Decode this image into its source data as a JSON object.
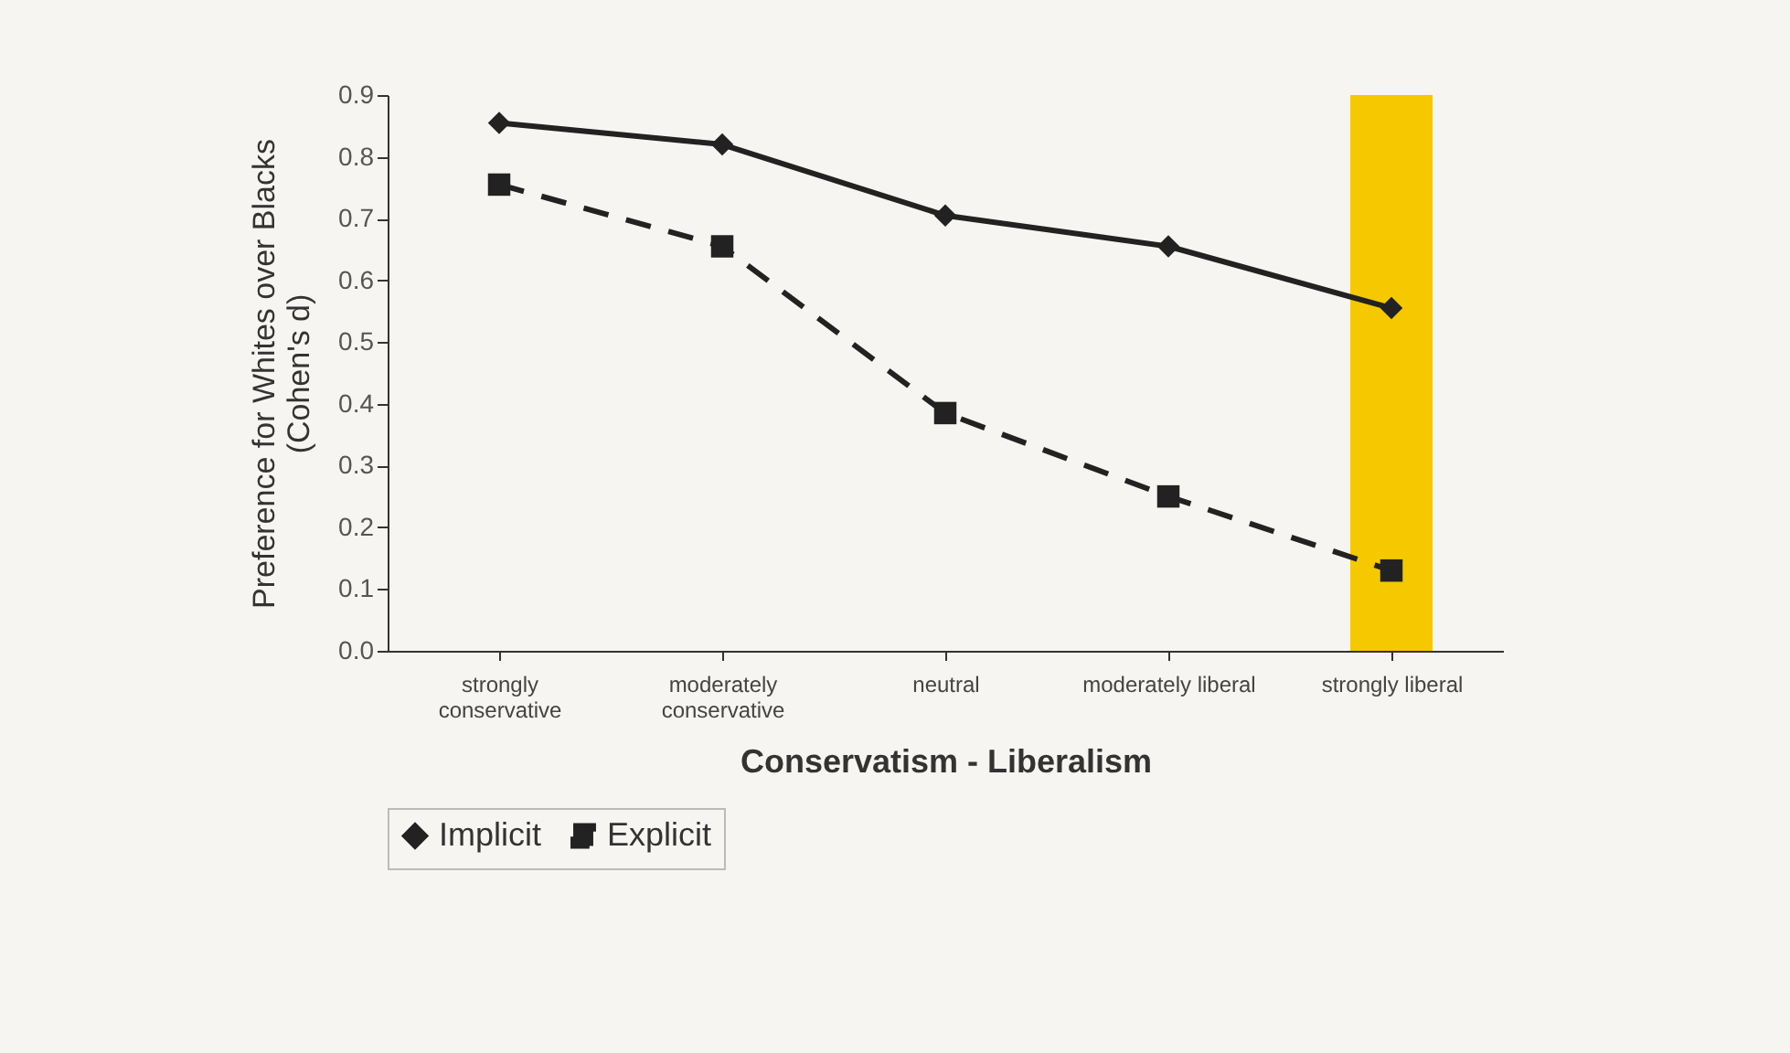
{
  "chart_data": {
    "type": "line",
    "xlabel": "Conservatism - Liberalism",
    "ylabel": "Preference for Whites over Blacks (Cohen's d)",
    "categories": [
      "strongly conservative",
      "moderately conservative",
      "neutral",
      "moderately liberal",
      "strongly liberal"
    ],
    "series": [
      {
        "name": "Implicit",
        "color": "#222222",
        "marker": "diamond",
        "line_style": "solid",
        "values": [
          0.855,
          0.82,
          0.705,
          0.655,
          0.555
        ]
      },
      {
        "name": "Explicit",
        "color": "#222222",
        "marker": "square",
        "line_style": "dashed",
        "values": [
          0.755,
          0.655,
          0.385,
          0.25,
          0.13
        ]
      }
    ],
    "ylim": [
      0,
      0.9
    ],
    "yticks": [
      {
        "value": 0,
        "label": "0.0"
      },
      0.1,
      0.2,
      0.3,
      0.4,
      0.5,
      0.6,
      0.7,
      0.8,
      0.9
    ],
    "bands": [
      {
        "axis": "x",
        "from": "strongly liberal",
        "to": "strongly liberal",
        "color": "#f5c800"
      }
    ],
    "grid": false,
    "legend": "bottom"
  }
}
